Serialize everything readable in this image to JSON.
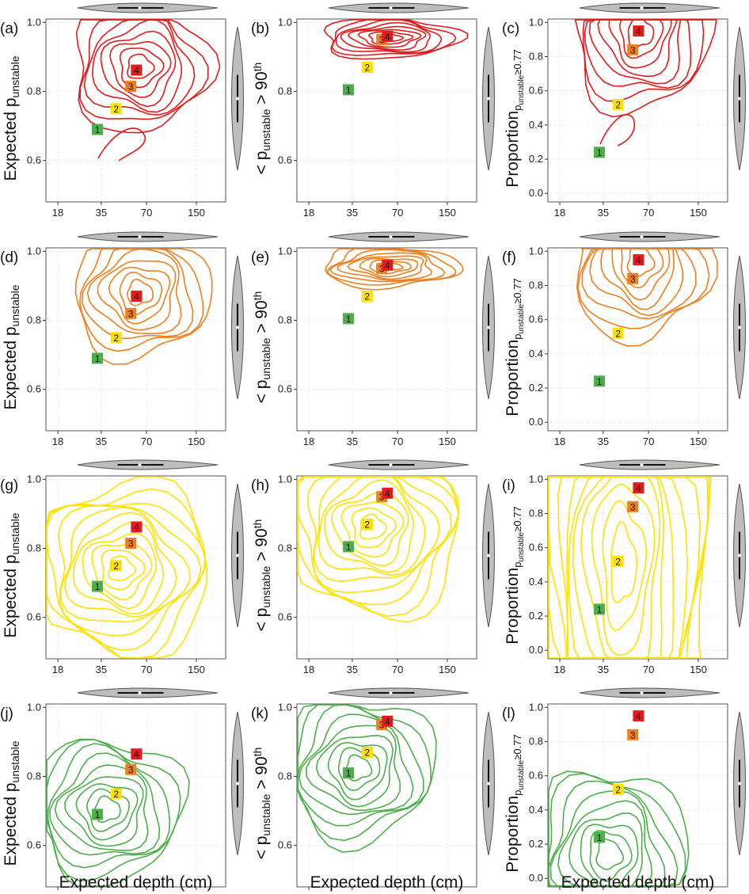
{
  "figure": {
    "xlabel": "Expected depth (cm)",
    "row_colors": [
      "#e41a1c",
      "#f07f1e",
      "#ffe200",
      "#4daf4a"
    ],
    "marker_colors": [
      "#4daf4a",
      "#ffe200",
      "#f07f1e",
      "#e41a1c"
    ],
    "panel_labels": [
      [
        "(a)",
        "(b)",
        "(c)"
      ],
      [
        "(d)",
        "(e)",
        "(f)"
      ],
      [
        "(g)",
        "(h)",
        "(i)"
      ],
      [
        "(j)",
        "(k)",
        "(l)"
      ]
    ]
  },
  "chart_data": [
    {
      "type": "contour",
      "panel": "a",
      "ylabel": "Expected p_unstable",
      "xscale": "log",
      "x_ticks": [
        18,
        35,
        70,
        150
      ],
      "y_ticks": [
        0.6,
        0.8,
        1.0
      ],
      "ylim": [
        0.48,
        1.01
      ],
      "markers": [
        {
          "label": "1",
          "x": 33,
          "y": 0.69
        },
        {
          "label": "2",
          "x": 44,
          "y": 0.75
        },
        {
          "label": "3",
          "x": 55,
          "y": 0.815
        },
        {
          "label": "4",
          "x": 60,
          "y": 0.862
        }
      ]
    },
    {
      "type": "contour",
      "panel": "b",
      "ylabel": "< p_unstable > 90th",
      "xscale": "log",
      "x_ticks": [
        18,
        35,
        70,
        150
      ],
      "y_ticks": [
        0.6,
        0.8,
        1.0
      ],
      "ylim": [
        0.48,
        1.01
      ],
      "markers": [
        {
          "label": "1",
          "x": 33,
          "y": 0.805
        },
        {
          "label": "2",
          "x": 44,
          "y": 0.87
        },
        {
          "label": "3",
          "x": 55,
          "y": 0.95
        },
        {
          "label": "4",
          "x": 60,
          "y": 0.96
        }
      ]
    },
    {
      "type": "contour",
      "panel": "c",
      "ylabel": "Proportion p_unstable ≥ 0.77",
      "xscale": "log",
      "x_ticks": [
        18,
        35,
        70,
        150
      ],
      "y_ticks": [
        0.0,
        0.2,
        0.4,
        0.6,
        0.8,
        1.0
      ],
      "ylim": [
        -0.05,
        1.02
      ],
      "markers": [
        {
          "label": "1",
          "x": 33,
          "y": 0.24
        },
        {
          "label": "2",
          "x": 44,
          "y": 0.52
        },
        {
          "label": "3",
          "x": 55,
          "y": 0.84
        },
        {
          "label": "4",
          "x": 60,
          "y": 0.95
        }
      ]
    },
    {
      "type": "contour",
      "panel": "d",
      "ylabel": "Expected p_unstable",
      "xscale": "log",
      "x_ticks": [
        18,
        35,
        70,
        150
      ],
      "y_ticks": [
        0.6,
        0.8,
        1.0
      ],
      "ylim": [
        0.48,
        1.01
      ],
      "markers": [
        {
          "label": "1",
          "x": 33,
          "y": 0.69
        },
        {
          "label": "2",
          "x": 44,
          "y": 0.75
        },
        {
          "label": "3",
          "x": 55,
          "y": 0.82
        },
        {
          "label": "4",
          "x": 60,
          "y": 0.87
        }
      ]
    },
    {
      "type": "contour",
      "panel": "e",
      "ylabel": "< p_unstable > 90th",
      "xscale": "log",
      "x_ticks": [
        18,
        35,
        70,
        150
      ],
      "y_ticks": [
        0.6,
        0.8,
        1.0
      ],
      "ylim": [
        0.48,
        1.01
      ],
      "markers": [
        {
          "label": "1",
          "x": 33,
          "y": 0.805
        },
        {
          "label": "2",
          "x": 44,
          "y": 0.87
        },
        {
          "label": "3",
          "x": 55,
          "y": 0.95
        },
        {
          "label": "4",
          "x": 60,
          "y": 0.96
        }
      ]
    },
    {
      "type": "contour",
      "panel": "f",
      "ylabel": "Proportion p_unstable ≥ 0.77",
      "xscale": "log",
      "x_ticks": [
        18,
        35,
        70,
        150
      ],
      "y_ticks": [
        0.0,
        0.2,
        0.4,
        0.6,
        0.8,
        1.0
      ],
      "ylim": [
        -0.05,
        1.02
      ],
      "markers": [
        {
          "label": "1",
          "x": 33,
          "y": 0.24
        },
        {
          "label": "2",
          "x": 44,
          "y": 0.52
        },
        {
          "label": "3",
          "x": 55,
          "y": 0.84
        },
        {
          "label": "4",
          "x": 60,
          "y": 0.95
        }
      ]
    },
    {
      "type": "contour",
      "panel": "g",
      "ylabel": "Expected p_unstable",
      "xscale": "log",
      "x_ticks": [
        18,
        35,
        70,
        150
      ],
      "y_ticks": [
        0.6,
        0.8,
        1.0
      ],
      "ylim": [
        0.48,
        1.01
      ],
      "markers": [
        {
          "label": "1",
          "x": 33,
          "y": 0.69
        },
        {
          "label": "2",
          "x": 44,
          "y": 0.75
        },
        {
          "label": "3",
          "x": 55,
          "y": 0.815
        },
        {
          "label": "4",
          "x": 60,
          "y": 0.862
        }
      ]
    },
    {
      "type": "contour",
      "panel": "h",
      "ylabel": "< p_unstable > 90th",
      "xscale": "log",
      "x_ticks": [
        18,
        35,
        70,
        150
      ],
      "y_ticks": [
        0.6,
        0.8,
        1.0
      ],
      "ylim": [
        0.48,
        1.01
      ],
      "markers": [
        {
          "label": "1",
          "x": 33,
          "y": 0.805
        },
        {
          "label": "2",
          "x": 44,
          "y": 0.87
        },
        {
          "label": "3",
          "x": 55,
          "y": 0.95
        },
        {
          "label": "4",
          "x": 60,
          "y": 0.96
        }
      ]
    },
    {
      "type": "contour",
      "panel": "i",
      "ylabel": "Proportion p_unstable ≥ 0.77",
      "xscale": "log",
      "x_ticks": [
        18,
        35,
        70,
        150
      ],
      "y_ticks": [
        0.0,
        0.2,
        0.4,
        0.6,
        0.8,
        1.0
      ],
      "ylim": [
        -0.05,
        1.02
      ],
      "markers": [
        {
          "label": "1",
          "x": 33,
          "y": 0.24
        },
        {
          "label": "2",
          "x": 44,
          "y": 0.52
        },
        {
          "label": "3",
          "x": 55,
          "y": 0.84
        },
        {
          "label": "4",
          "x": 60,
          "y": 0.95
        }
      ]
    },
    {
      "type": "contour",
      "panel": "j",
      "ylabel": "Expected p_unstable",
      "xscale": "log",
      "x_ticks": [
        18,
        35,
        70,
        150
      ],
      "y_ticks": [
        0.6,
        0.8,
        1.0
      ],
      "ylim": [
        0.48,
        1.01
      ],
      "markers": [
        {
          "label": "1",
          "x": 33,
          "y": 0.69
        },
        {
          "label": "2",
          "x": 44,
          "y": 0.75
        },
        {
          "label": "3",
          "x": 55,
          "y": 0.82
        },
        {
          "label": "4",
          "x": 60,
          "y": 0.865
        }
      ]
    },
    {
      "type": "contour",
      "panel": "k",
      "ylabel": "< p_unstable > 90th",
      "xscale": "log",
      "x_ticks": [
        18,
        35,
        70,
        150
      ],
      "y_ticks": [
        0.6,
        0.8,
        1.0
      ],
      "ylim": [
        0.48,
        1.01
      ],
      "markers": [
        {
          "label": "1",
          "x": 33,
          "y": 0.81
        },
        {
          "label": "2",
          "x": 44,
          "y": 0.87
        },
        {
          "label": "3",
          "x": 55,
          "y": 0.95
        },
        {
          "label": "4",
          "x": 60,
          "y": 0.96
        }
      ]
    },
    {
      "type": "contour",
      "panel": "l",
      "ylabel": "Proportion p_unstable ≥ 0.77",
      "xscale": "log",
      "x_ticks": [
        18,
        35,
        70,
        150
      ],
      "y_ticks": [
        0.0,
        0.2,
        0.4,
        0.6,
        0.8,
        1.0
      ],
      "ylim": [
        -0.05,
        1.02
      ],
      "markers": [
        {
          "label": "1",
          "x": 33,
          "y": 0.24
        },
        {
          "label": "2",
          "x": 44,
          "y": 0.52
        },
        {
          "label": "3",
          "x": 55,
          "y": 0.84
        },
        {
          "label": "4",
          "x": 60,
          "y": 0.95
        }
      ]
    }
  ]
}
